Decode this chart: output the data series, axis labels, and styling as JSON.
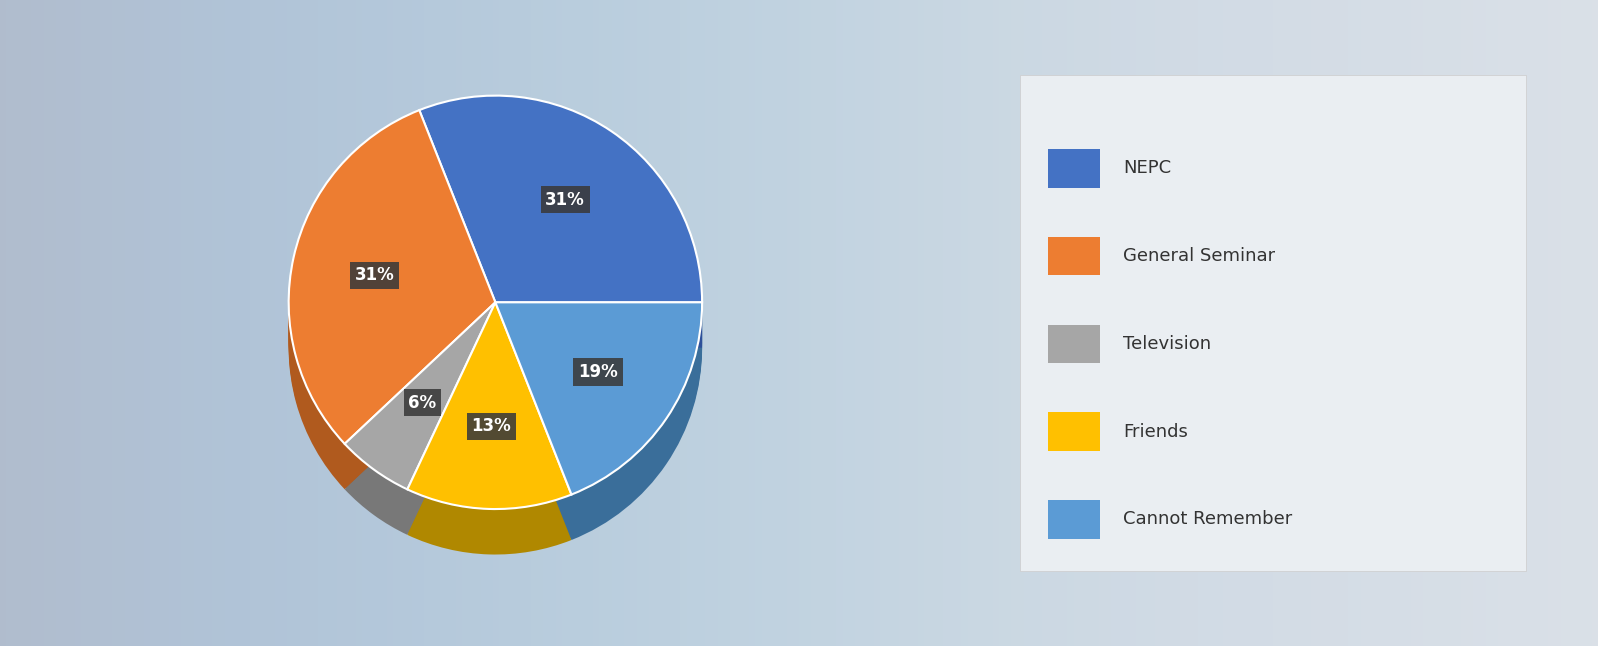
{
  "labels": [
    "NEPC",
    "General Seminar",
    "Television",
    "Friends",
    "Cannot Remember"
  ],
  "values": [
    31,
    31,
    6,
    13,
    19
  ],
  "colors": [
    "#4472C4",
    "#ED7D31",
    "#A6A6A6",
    "#FFC000",
    "#5B9BD5"
  ],
  "edge_colors": [
    "#2e509a",
    "#b05a1e",
    "#787878",
    "#b08800",
    "#3a6e9a"
  ],
  "pct_labels": [
    "31%",
    "31%",
    "6%",
    "13%",
    "19%"
  ],
  "label_bg_color": "#3a3a3a",
  "label_text_color": "#ffffff",
  "bg_left_color": "#c8d0d8",
  "bg_right_color": "#e8edf2",
  "legend_font_size": 13,
  "startangle": 90,
  "figsize": [
    15.98,
    6.46
  ],
  "dpi": 100
}
